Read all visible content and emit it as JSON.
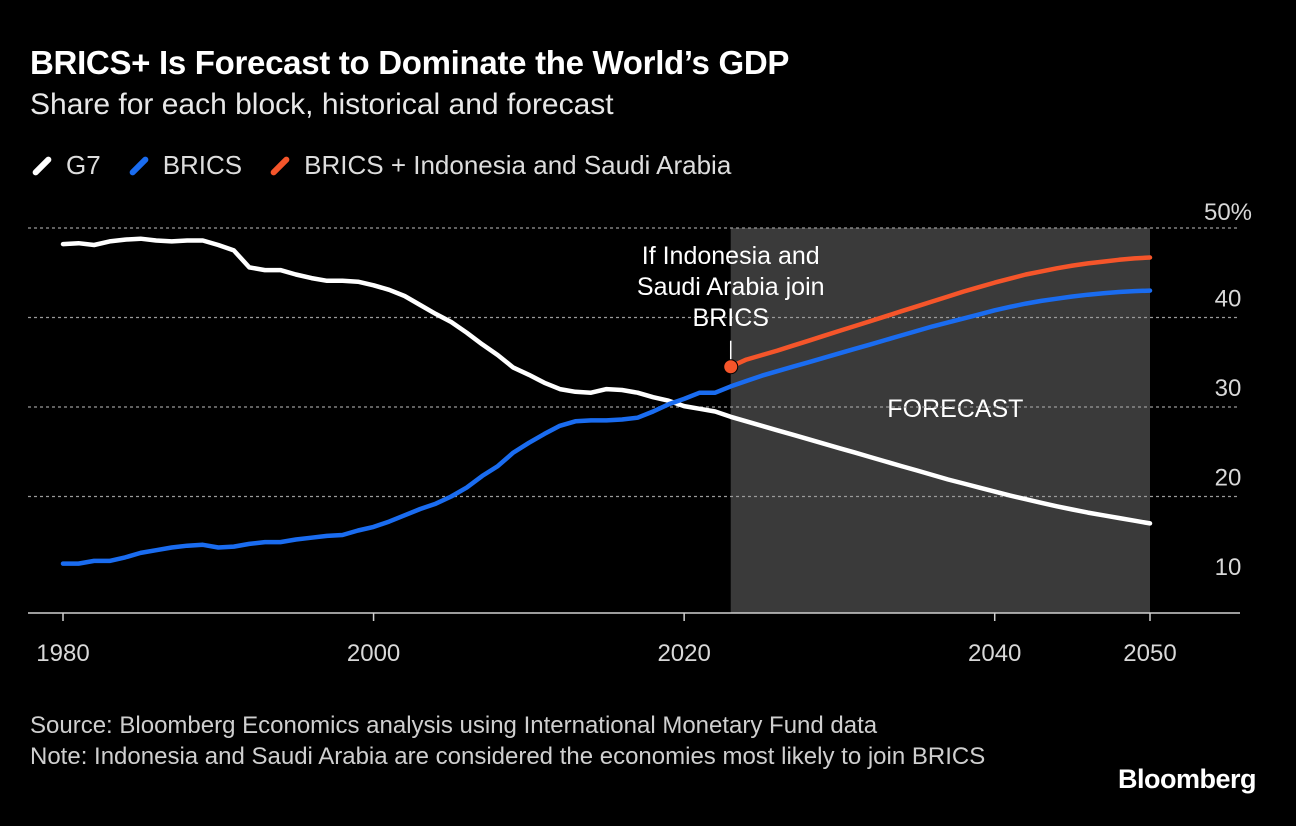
{
  "header": {
    "title": "BRICS+ Is Forecast to Dominate the World’s GDP",
    "subtitle": "Share for each block, historical and forecast"
  },
  "legend": [
    {
      "label": "G7",
      "color": "#ffffff"
    },
    {
      "label": "BRICS",
      "color": "#1a6cf0"
    },
    {
      "label": "BRICS + Indonesia and Saudi Arabia",
      "color": "#f5552a"
    }
  ],
  "footer": {
    "source": "Source: Bloomberg Economics analysis using International Monetary Fund data",
    "note": "Note: Indonesia and Saudi Arabia are considered the economies most likely to join BRICS"
  },
  "brand": "Bloomberg",
  "chart_data": {
    "type": "line",
    "title": "BRICS+ Is Forecast to Dominate the World’s GDP",
    "xlim": [
      1978,
      2056
    ],
    "ylim": [
      7,
      50
    ],
    "yticks": [
      {
        "value": 10,
        "label": "10"
      },
      {
        "value": 20,
        "label": "20"
      },
      {
        "value": 30,
        "label": "30"
      },
      {
        "value": 40,
        "label": "40"
      },
      {
        "value": 50,
        "label": "50%"
      }
    ],
    "xticks": [
      {
        "value": 1980,
        "label": "1980"
      },
      {
        "value": 2000,
        "label": "2000"
      },
      {
        "value": 2020,
        "label": "2020"
      },
      {
        "value": 2040,
        "label": "2040"
      },
      {
        "value": 2050,
        "label": "2050"
      }
    ],
    "forecast_region": {
      "start": 2023,
      "end": 2050,
      "label": "FORECAST"
    },
    "annotation": {
      "x": 2023,
      "y": 34.5,
      "lines": [
        "If Indonesia and",
        "Saudi Arabia join",
        "BRICS"
      ]
    },
    "series": [
      {
        "name": "G7",
        "color": "#ffffff",
        "x": [
          1980,
          1981,
          1982,
          1983,
          1984,
          1985,
          1986,
          1987,
          1988,
          1989,
          1990,
          1991,
          1992,
          1993,
          1994,
          1995,
          1996,
          1997,
          1998,
          1999,
          2000,
          2001,
          2002,
          2003,
          2004,
          2005,
          2006,
          2007,
          2008,
          2009,
          2010,
          2011,
          2012,
          2013,
          2014,
          2015,
          2016,
          2017,
          2018,
          2019,
          2020,
          2021,
          2022,
          2023,
          2024,
          2025,
          2026,
          2027,
          2028,
          2029,
          2030,
          2031,
          2032,
          2033,
          2034,
          2035,
          2036,
          2037,
          2038,
          2039,
          2040,
          2041,
          2042,
          2043,
          2044,
          2045,
          2046,
          2047,
          2048,
          2049,
          2050
        ],
        "values": [
          48.2,
          48.3,
          48.1,
          48.5,
          48.7,
          48.8,
          48.6,
          48.5,
          48.6,
          48.6,
          48.1,
          47.5,
          45.6,
          45.3,
          45.3,
          44.8,
          44.4,
          44.1,
          44.1,
          44.0,
          43.6,
          43.1,
          42.4,
          41.4,
          40.4,
          39.5,
          38.3,
          37.0,
          35.8,
          34.4,
          33.6,
          32.7,
          32.0,
          31.7,
          31.6,
          32.0,
          31.9,
          31.6,
          31.1,
          30.7,
          30.1,
          29.8,
          29.5,
          28.9,
          28.4,
          27.9,
          27.4,
          26.9,
          26.4,
          25.9,
          25.4,
          24.9,
          24.4,
          23.9,
          23.4,
          22.9,
          22.4,
          21.9,
          21.45,
          21.0,
          20.55,
          20.1,
          19.7,
          19.3,
          18.9,
          18.55,
          18.2,
          17.9,
          17.6,
          17.3,
          17.0
        ]
      },
      {
        "name": "BRICS",
        "color": "#1a6cf0",
        "x": [
          1980,
          1981,
          1982,
          1983,
          1984,
          1985,
          1986,
          1987,
          1988,
          1989,
          1990,
          1991,
          1992,
          1993,
          1994,
          1995,
          1996,
          1997,
          1998,
          1999,
          2000,
          2001,
          2002,
          2003,
          2004,
          2005,
          2006,
          2007,
          2008,
          2009,
          2010,
          2011,
          2012,
          2013,
          2014,
          2015,
          2016,
          2017,
          2018,
          2019,
          2020,
          2021,
          2022,
          2023,
          2024,
          2025,
          2026,
          2027,
          2028,
          2029,
          2030,
          2031,
          2032,
          2033,
          2034,
          2035,
          2036,
          2037,
          2038,
          2039,
          2040,
          2041,
          2042,
          2043,
          2044,
          2045,
          2046,
          2047,
          2048,
          2049,
          2050
        ],
        "values": [
          12.5,
          12.5,
          12.8,
          12.8,
          13.2,
          13.7,
          14.0,
          14.3,
          14.5,
          14.6,
          14.3,
          14.4,
          14.7,
          14.9,
          14.9,
          15.2,
          15.4,
          15.6,
          15.7,
          16.2,
          16.6,
          17.2,
          17.9,
          18.6,
          19.2,
          20.0,
          21.0,
          22.3,
          23.4,
          24.9,
          26.0,
          27.0,
          27.9,
          28.4,
          28.5,
          28.5,
          28.6,
          28.8,
          29.5,
          30.3,
          30.9,
          31.6,
          31.6,
          32.3,
          32.9,
          33.5,
          34.0,
          34.5,
          35.0,
          35.5,
          36.0,
          36.5,
          37.0,
          37.5,
          38.0,
          38.5,
          39.0,
          39.45,
          39.9,
          40.35,
          40.8,
          41.2,
          41.55,
          41.85,
          42.1,
          42.35,
          42.55,
          42.7,
          42.85,
          42.95,
          43.0
        ]
      },
      {
        "name": "BRICS + Indonesia and Saudi Arabia",
        "color": "#f5552a",
        "x": [
          2023,
          2024,
          2025,
          2026,
          2027,
          2028,
          2029,
          2030,
          2031,
          2032,
          2033,
          2034,
          2035,
          2036,
          2037,
          2038,
          2039,
          2040,
          2041,
          2042,
          2043,
          2044,
          2045,
          2046,
          2047,
          2048,
          2049,
          2050
        ],
        "values": [
          34.5,
          35.3,
          35.8,
          36.3,
          36.85,
          37.4,
          37.95,
          38.5,
          39.05,
          39.6,
          40.15,
          40.7,
          41.25,
          41.8,
          42.35,
          42.9,
          43.4,
          43.9,
          44.35,
          44.8,
          45.15,
          45.5,
          45.8,
          46.05,
          46.25,
          46.45,
          46.6,
          46.7
        ]
      }
    ]
  }
}
